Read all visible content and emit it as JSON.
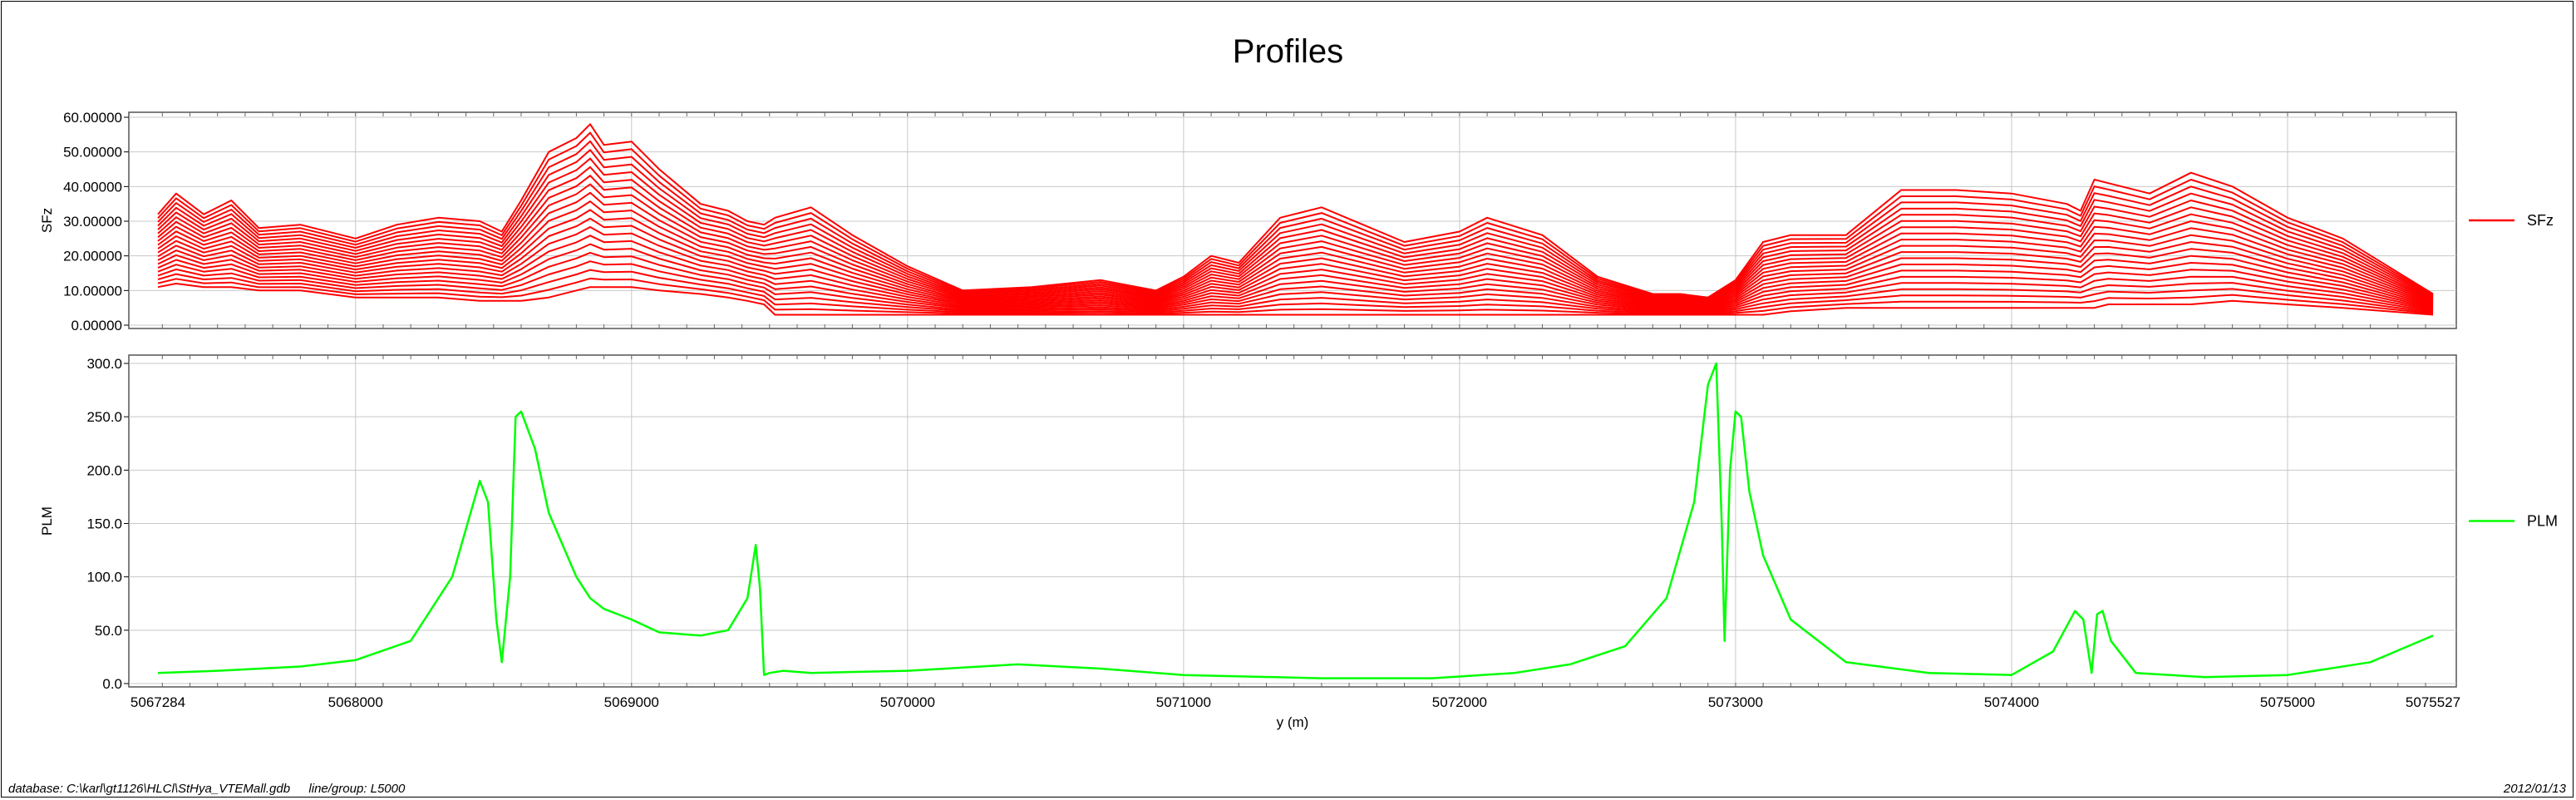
{
  "chart_data": [
    {
      "type": "line",
      "title": "Profiles",
      "ylabel": "SFz",
      "xlabel": "",
      "ylim": [
        0,
        60
      ],
      "xlim": [
        5067284,
        5075527
      ],
      "yticks": [
        "0.00000",
        "10.00000",
        "20.00000",
        "30.00000",
        "40.00000",
        "50.00000",
        "60.00000"
      ],
      "grid": true,
      "legend": "right",
      "color": "#ff0000",
      "series": [
        {
          "name": "SFz",
          "note_channels": 20,
          "x": [
            5067284,
            5067350,
            5067450,
            5067550,
            5067650,
            5067800,
            5068000,
            5068150,
            5068300,
            5068450,
            5068530,
            5068600,
            5068700,
            5068800,
            5068850,
            5068900,
            5069000,
            5069100,
            5069250,
            5069350,
            5069420,
            5069480,
            5069520,
            5069650,
            5069800,
            5070000,
            5070200,
            5070450,
            5070700,
            5070900,
            5071000,
            5071100,
            5071200,
            5071350,
            5071500,
            5071650,
            5071800,
            5072000,
            5072100,
            5072300,
            5072500,
            5072700,
            5072800,
            5072900,
            5073000,
            5073100,
            5073200,
            5073400,
            5073600,
            5073800,
            5074000,
            5074200,
            5074250,
            5074300,
            5074350,
            5074500,
            5074650,
            5074800,
            5075000,
            5075200,
            5075527
          ],
          "top": [
            32,
            38,
            32,
            36,
            28,
            29,
            25,
            29,
            31,
            30,
            27,
            36,
            50,
            54,
            58,
            52,
            53,
            45,
            35,
            33,
            30,
            29,
            31,
            34,
            26,
            17,
            10,
            11,
            13,
            10,
            14,
            20,
            18,
            31,
            34,
            29,
            24,
            27,
            31,
            26,
            14,
            9,
            9,
            8,
            13,
            24,
            26,
            26,
            39,
            39,
            38,
            35,
            33,
            42,
            41,
            38,
            44,
            40,
            31,
            25,
            9
          ],
          "bottom": [
            11,
            12,
            11,
            11,
            10,
            10,
            8,
            8,
            8,
            7,
            7,
            7,
            8,
            10,
            11,
            11,
            11,
            10,
            9,
            8,
            7,
            6,
            3,
            3,
            3,
            3,
            3,
            3,
            3,
            3,
            3,
            3,
            3,
            3,
            3,
            3,
            3,
            3,
            3,
            3,
            3,
            3,
            3,
            3,
            3,
            3,
            4,
            5,
            5,
            5,
            5,
            5,
            5,
            5,
            6,
            6,
            6,
            7,
            6,
            5,
            3
          ]
        }
      ]
    },
    {
      "type": "line",
      "ylabel": "PLM",
      "xlabel": "y (m)",
      "ylim": [
        0,
        300
      ],
      "xlim": [
        5067284,
        5075527
      ],
      "yticks": [
        "0.0",
        "50.0",
        "100.0",
        "150.0",
        "200.0",
        "250.0",
        "300.0"
      ],
      "xticks": [
        "5067284",
        "5068000",
        "5069000",
        "5070000",
        "5071000",
        "5072000",
        "5073000",
        "5074000",
        "5075000",
        "5075527"
      ],
      "grid": true,
      "legend": "right",
      "color": "#00ff00",
      "series": [
        {
          "name": "PLM",
          "x": [
            5067284,
            5067500,
            5067800,
            5068000,
            5068200,
            5068350,
            5068450,
            5068480,
            5068510,
            5068530,
            5068560,
            5068580,
            5068600,
            5068650,
            5068700,
            5068800,
            5068850,
            5068900,
            5069000,
            5069100,
            5069250,
            5069350,
            5069420,
            5069450,
            5069465,
            5069480,
            5069500,
            5069550,
            5069650,
            5070000,
            5070400,
            5070700,
            5071000,
            5071500,
            5071900,
            5072200,
            5072400,
            5072600,
            5072750,
            5072850,
            5072900,
            5072930,
            5072950,
            5072960,
            5072980,
            5073000,
            5073020,
            5073050,
            5073100,
            5073200,
            5073400,
            5073700,
            5074000,
            5074150,
            5074230,
            5074260,
            5074290,
            5074310,
            5074330,
            5074360,
            5074450,
            5074700,
            5075000,
            5075300,
            5075527
          ],
          "y": [
            10,
            12,
            16,
            22,
            40,
            100,
            190,
            170,
            60,
            20,
            100,
            250,
            255,
            220,
            160,
            100,
            80,
            70,
            60,
            48,
            45,
            50,
            80,
            130,
            90,
            8,
            10,
            12,
            10,
            12,
            18,
            14,
            8,
            5,
            5,
            10,
            18,
            35,
            80,
            170,
            280,
            300,
            150,
            40,
            200,
            255,
            250,
            180,
            120,
            60,
            20,
            10,
            8,
            30,
            68,
            60,
            10,
            65,
            68,
            40,
            10,
            6,
            8,
            20,
            45
          ]
        }
      ]
    }
  ],
  "header": {
    "title": "Profiles"
  },
  "footer": {
    "database": "database:  C:\\karl\\gt1126\\HLCl\\StHya_VTEMall.gdb",
    "line_group": "line/group:  L5000",
    "date": "2012/01/13"
  }
}
